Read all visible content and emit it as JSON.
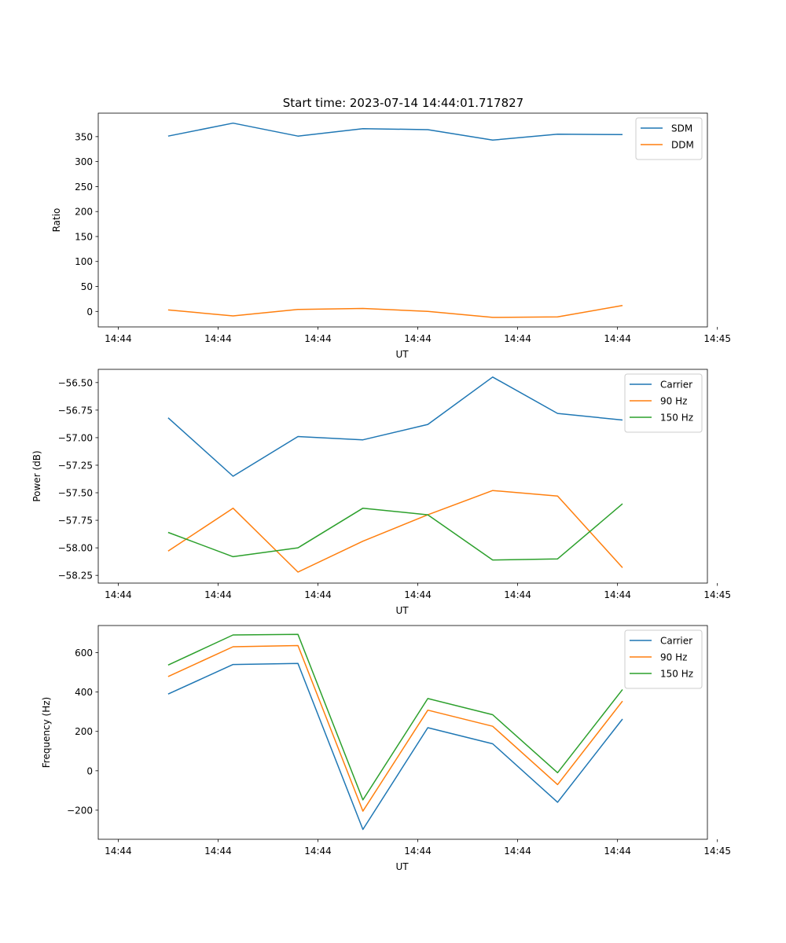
{
  "figure": {
    "title": "Start time: 2023-07-14 14:44:01.717827"
  },
  "chart_data": [
    {
      "type": "line",
      "title": "Start time: 2023-07-14 14:44:01.717827",
      "xlabel": "UT",
      "ylabel": "Ratio",
      "x": [
        0.5,
        1.15,
        1.8,
        2.45,
        3.1,
        3.75,
        4.4,
        5.05
      ],
      "xlim": [
        -0.2,
        5.9
      ],
      "xticks": [
        0,
        1,
        2,
        3,
        4,
        5,
        6
      ],
      "xtick_labels": [
        "14:44",
        "14:44",
        "14:44",
        "14:44",
        "14:44",
        "14:44",
        "14:45"
      ],
      "ylim": [
        -31,
        397
      ],
      "yticks": [
        0,
        50,
        100,
        150,
        200,
        250,
        300,
        350
      ],
      "ytick_labels": [
        "0",
        "50",
        "100",
        "150",
        "200",
        "250",
        "300",
        "350"
      ],
      "legend_position": "top-right",
      "series": [
        {
          "name": "SDM",
          "color": "#1f77b4",
          "values": [
            351,
            377,
            351,
            366,
            364,
            343,
            355,
            354
          ]
        },
        {
          "name": "DDM",
          "color": "#ff7f0e",
          "values": [
            3,
            -9,
            4,
            6,
            0,
            -12,
            -11,
            12
          ]
        }
      ]
    },
    {
      "type": "line",
      "title": "",
      "xlabel": "UT",
      "ylabel": "Power (dB)",
      "x": [
        0.5,
        1.15,
        1.8,
        2.45,
        3.1,
        3.75,
        4.4,
        5.05
      ],
      "xlim": [
        -0.2,
        5.9
      ],
      "xticks": [
        0,
        1,
        2,
        3,
        4,
        5,
        6
      ],
      "xtick_labels": [
        "14:44",
        "14:44",
        "14:44",
        "14:44",
        "14:44",
        "14:44",
        "14:45"
      ],
      "ylim": [
        -58.32,
        -56.38
      ],
      "yticks": [
        -58.25,
        -58.0,
        -57.75,
        -57.5,
        -57.25,
        -57.0,
        -56.75,
        -56.5
      ],
      "ytick_labels": [
        "−58.25",
        "−58.00",
        "−57.75",
        "−57.50",
        "−57.25",
        "−57.00",
        "−56.75",
        "−56.50"
      ],
      "legend_position": "top-right",
      "series": [
        {
          "name": "Carrier",
          "color": "#1f77b4",
          "values": [
            -56.82,
            -57.35,
            -56.99,
            -57.02,
            -56.88,
            -56.45,
            -56.78,
            -56.84
          ]
        },
        {
          "name": "90 Hz",
          "color": "#ff7f0e",
          "values": [
            -58.03,
            -57.64,
            -58.22,
            -57.94,
            -57.7,
            -57.48,
            -57.53,
            -58.18
          ]
        },
        {
          "name": "150 Hz",
          "color": "#2ca02c",
          "values": [
            -57.86,
            -58.08,
            -58.0,
            -57.64,
            -57.7,
            -58.11,
            -58.1,
            -57.6
          ]
        }
      ]
    },
    {
      "type": "line",
      "title": "",
      "xlabel": "UT",
      "ylabel": "Frequency (Hz)",
      "x": [
        0.5,
        1.15,
        1.8,
        2.45,
        3.1,
        3.75,
        4.4,
        5.05
      ],
      "xlim": [
        -0.2,
        5.9
      ],
      "xticks": [
        0,
        1,
        2,
        3,
        4,
        5,
        6
      ],
      "xtick_labels": [
        "14:44",
        "14:44",
        "14:44",
        "14:44",
        "14:44",
        "14:44",
        "14:45"
      ],
      "ylim": [
        -348,
        738
      ],
      "yticks": [
        -200,
        0,
        200,
        400,
        600
      ],
      "ytick_labels": [
        "−200",
        "0",
        "200",
        "400",
        "600"
      ],
      "legend_position": "top-right",
      "series": [
        {
          "name": "Carrier",
          "color": "#1f77b4",
          "values": [
            390,
            540,
            545,
            -298,
            219,
            137,
            -160,
            263
          ]
        },
        {
          "name": "90 Hz",
          "color": "#ff7f0e",
          "values": [
            479,
            630,
            636,
            -205,
            308,
            226,
            -70,
            354
          ]
        },
        {
          "name": "150 Hz",
          "color": "#2ca02c",
          "values": [
            537,
            690,
            693,
            -148,
            367,
            285,
            -10,
            413
          ]
        }
      ]
    }
  ]
}
